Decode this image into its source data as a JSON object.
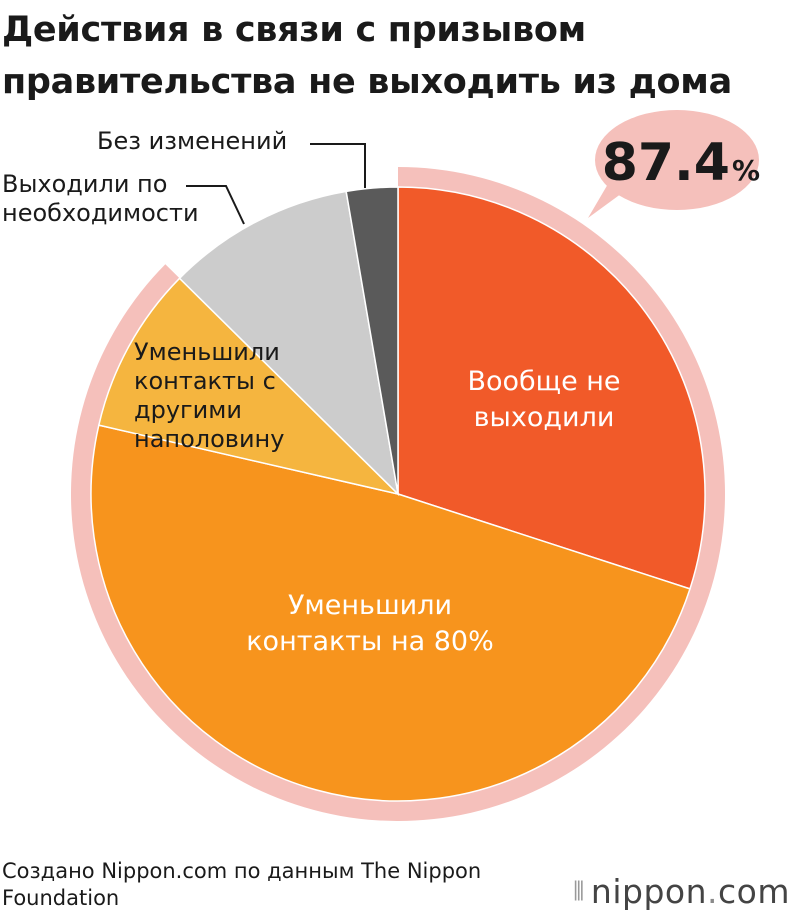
{
  "title_lines": [
    "Действия в связи с призывом",
    "правительства не выходить из дома"
  ],
  "highlight": {
    "value": "87.4",
    "unit": "%"
  },
  "chart_data": {
    "type": "pie",
    "unit": "%",
    "slices": [
      {
        "name": "Вообще не выходили",
        "label_lines": [
          "Вообще не",
          "выходили"
        ],
        "value": 30.0,
        "color": "#F15A29"
      },
      {
        "name": "Уменьшили контакты на 80%",
        "label_lines": [
          "Уменьшили",
          "контакты на 80%"
        ],
        "value": 48.6,
        "color": "#F7941D"
      },
      {
        "name": "Уменьшили контакты с другими наполовину",
        "label_lines": [
          "Уменьшили",
          "контакты с",
          "другими",
          "наполовину"
        ],
        "value": 8.8,
        "color": "#F5B53F"
      },
      {
        "name": "Выходили по необходимости",
        "label_lines": [
          "Выходили по",
          "необходимости"
        ],
        "value": 9.9,
        "color": "#CCCCCC"
      },
      {
        "name": "Без изменений",
        "label_lines": [
          "Без изменений"
        ],
        "value": 2.7,
        "color": "#5A5A5A"
      }
    ],
    "highlight_ring": {
      "covers_slices": [
        0,
        1,
        2
      ],
      "total": 87.4,
      "color": "#F5C0BB"
    }
  },
  "footer": {
    "source": "Создано Nippon.com по данным The Nippon Foundation"
  },
  "logo": {
    "name": "nippon",
    "dot": ".",
    "tld": "com"
  }
}
